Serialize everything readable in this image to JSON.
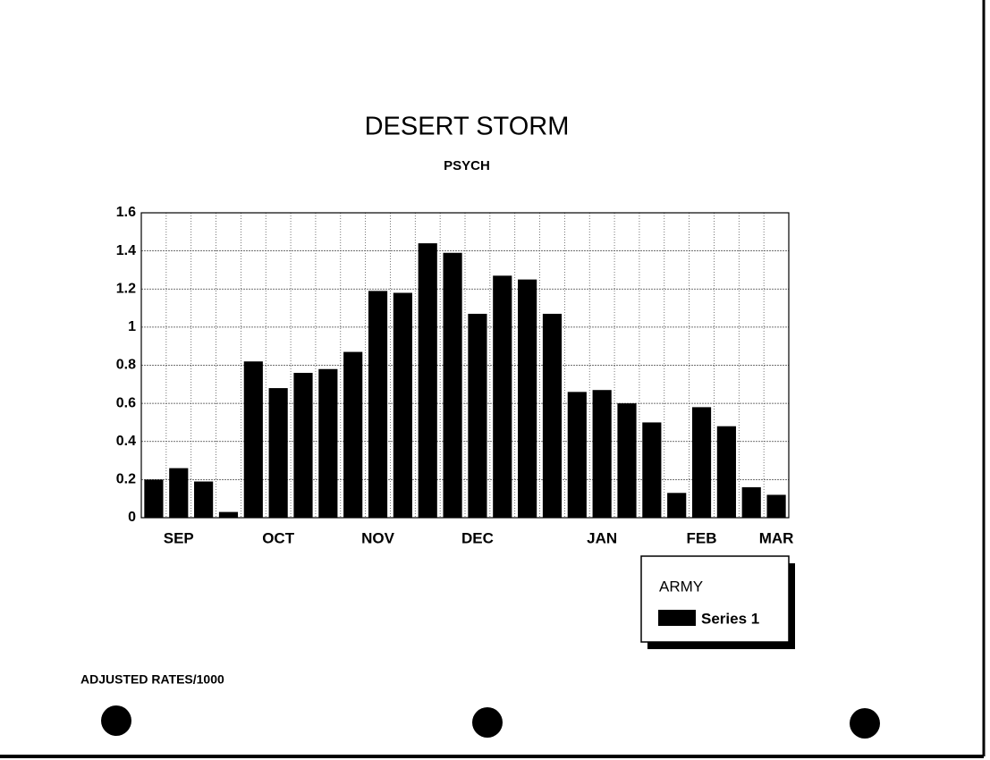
{
  "chart_data": {
    "type": "bar",
    "title": "DESERT STORM",
    "subtitle": "PSYCH",
    "categories": [
      null,
      "SEP",
      null,
      null,
      null,
      "OCT",
      null,
      null,
      null,
      "NOV",
      null,
      null,
      null,
      "DEC",
      null,
      null,
      null,
      null,
      "JAN",
      null,
      null,
      null,
      "FEB",
      null,
      null,
      "MAR"
    ],
    "series": [
      {
        "name": "Series 1",
        "color": "#000000",
        "values": [
          0.2,
          0.26,
          0.19,
          0.03,
          0.82,
          0.68,
          0.76,
          0.78,
          0.87,
          1.19,
          1.18,
          1.44,
          1.39,
          1.07,
          1.27,
          1.25,
          1.07,
          0.66,
          0.67,
          0.6,
          0.5,
          0.13,
          0.58,
          0.48,
          0.16,
          0.12
        ]
      }
    ],
    "ylim": [
      0,
      1.6
    ],
    "yticks": [
      0,
      0.2,
      0.4,
      0.6,
      0.8,
      1,
      1.2,
      1.4,
      1.6
    ],
    "grid": true,
    "legend_title": "ARMY",
    "legend_position": "bottom-right",
    "annotation": "ADJUSTED RATES/1000"
  }
}
